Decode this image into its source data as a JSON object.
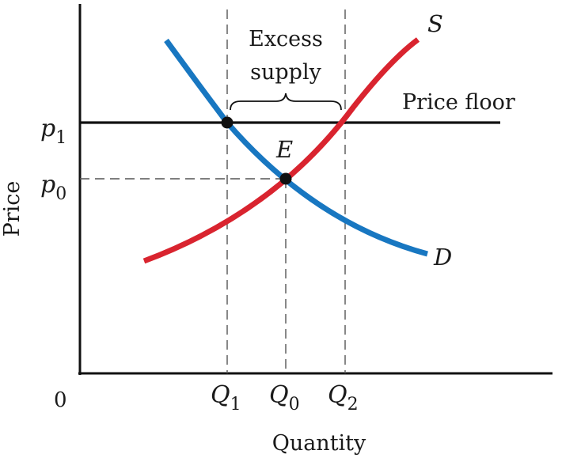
{
  "diagram": {
    "curves": {
      "supply_label": "S",
      "demand_label": "D",
      "price_floor_label": "Price floor",
      "supply_color": "#d9242f",
      "demand_color": "#1877c1",
      "floor_color": "#111111"
    },
    "points": {
      "equilibrium_label": "E"
    },
    "annotation": {
      "line1": "Excess",
      "line2": "supply"
    },
    "axes": {
      "origin_label": "0",
      "x_label": "Quantity",
      "y_label": "Price"
    },
    "price_ticks": [
      {
        "main": "p",
        "sub": "1"
      },
      {
        "main": "p",
        "sub": "0"
      }
    ],
    "quantity_ticks": [
      {
        "main": "Q",
        "sub": "1"
      },
      {
        "main": "Q",
        "sub": "0"
      },
      {
        "main": "Q",
        "sub": "2"
      }
    ]
  }
}
